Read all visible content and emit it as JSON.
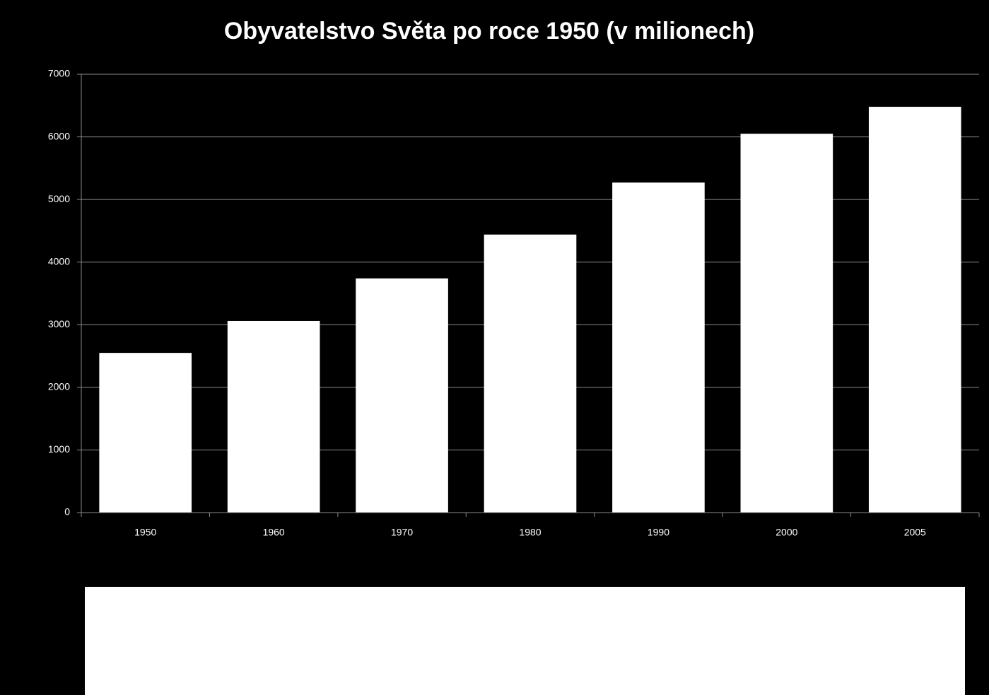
{
  "chart_data": {
    "type": "bar",
    "title": "Obyvatelstvo Světa po roce 1950 (v milionech)",
    "categories": [
      "1950",
      "1960",
      "1970",
      "1980",
      "1990",
      "2000",
      "2005"
    ],
    "values": [
      2550,
      3060,
      3740,
      4440,
      5270,
      6050,
      6480
    ],
    "color": "#ffffff",
    "ylim": [
      0,
      7000
    ],
    "yticks": [
      0,
      1000,
      2000,
      3000,
      4000,
      5000,
      6000,
      7000
    ],
    "grid": true
  }
}
